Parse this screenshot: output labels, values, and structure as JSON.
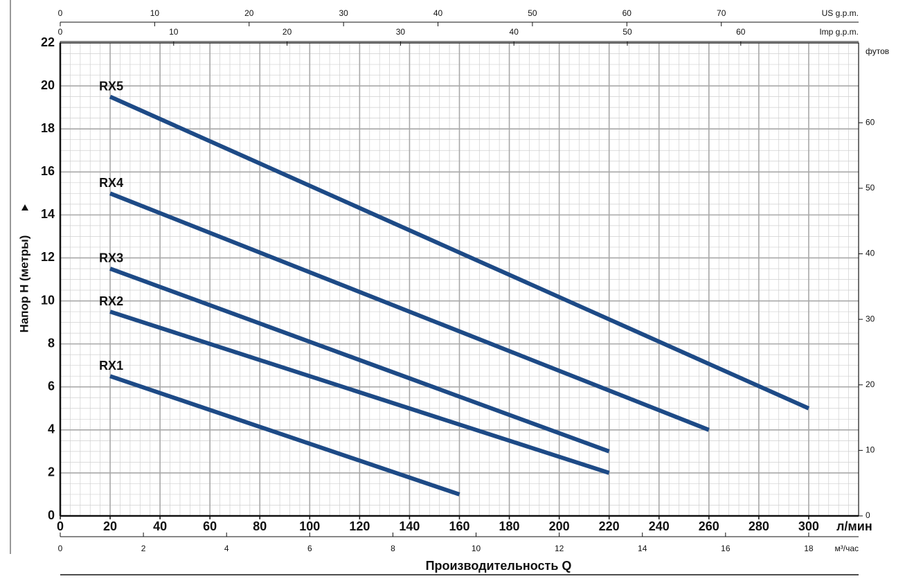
{
  "chart_data": {
    "type": "line",
    "ylabel": "Напор H (метры)",
    "xlabel": "Производительность Q",
    "xunit": "л/мин",
    "xlim": [
      0,
      320
    ],
    "xticks": [
      0,
      20,
      40,
      60,
      80,
      100,
      120,
      140,
      160,
      180,
      200,
      220,
      240,
      260,
      280,
      300
    ],
    "ylim": [
      0,
      22
    ],
    "yticks": [
      0,
      2,
      4,
      6,
      8,
      10,
      12,
      14,
      16,
      18,
      20,
      22
    ],
    "grid": true,
    "minor_grid_step": [
      4,
      0.5
    ],
    "y2label": "футов",
    "y2lim": [
      0,
      72.18
    ],
    "y2ticks": [
      0,
      10,
      20,
      30,
      40,
      50,
      60
    ],
    "secondary_x_axes": [
      {
        "label": "US g.p.m.",
        "position": "top",
        "xlim": [
          0,
          84.54
        ],
        "xticks": [
          0,
          10,
          20,
          30,
          40,
          50,
          60,
          70
        ]
      },
      {
        "label": "Imp g.p.m.",
        "position": "top",
        "xlim": [
          0,
          70.39
        ],
        "xticks": [
          0,
          10,
          20,
          30,
          40,
          50,
          60
        ]
      },
      {
        "label": "м³/час",
        "position": "bottom",
        "xlim": [
          0,
          19.2
        ],
        "xticks": [
          0,
          2,
          4,
          6,
          8,
          10,
          12,
          14,
          16,
          18
        ]
      }
    ],
    "series": [
      {
        "name": "RX1",
        "color": "#1d4a86",
        "x": [
          20,
          160
        ],
        "values": [
          6.5,
          1
        ]
      },
      {
        "name": "RX2",
        "color": "#1d4a86",
        "x": [
          20,
          220
        ],
        "values": [
          9.5,
          2
        ]
      },
      {
        "name": "RX3",
        "color": "#1d4a86",
        "x": [
          20,
          220
        ],
        "values": [
          11.5,
          3
        ]
      },
      {
        "name": "RX4",
        "color": "#1d4a86",
        "x": [
          20,
          260
        ],
        "values": [
          15,
          4
        ]
      },
      {
        "name": "RX5",
        "color": "#1d4a86",
        "x": [
          20,
          300
        ],
        "values": [
          19.5,
          5
        ]
      }
    ]
  }
}
